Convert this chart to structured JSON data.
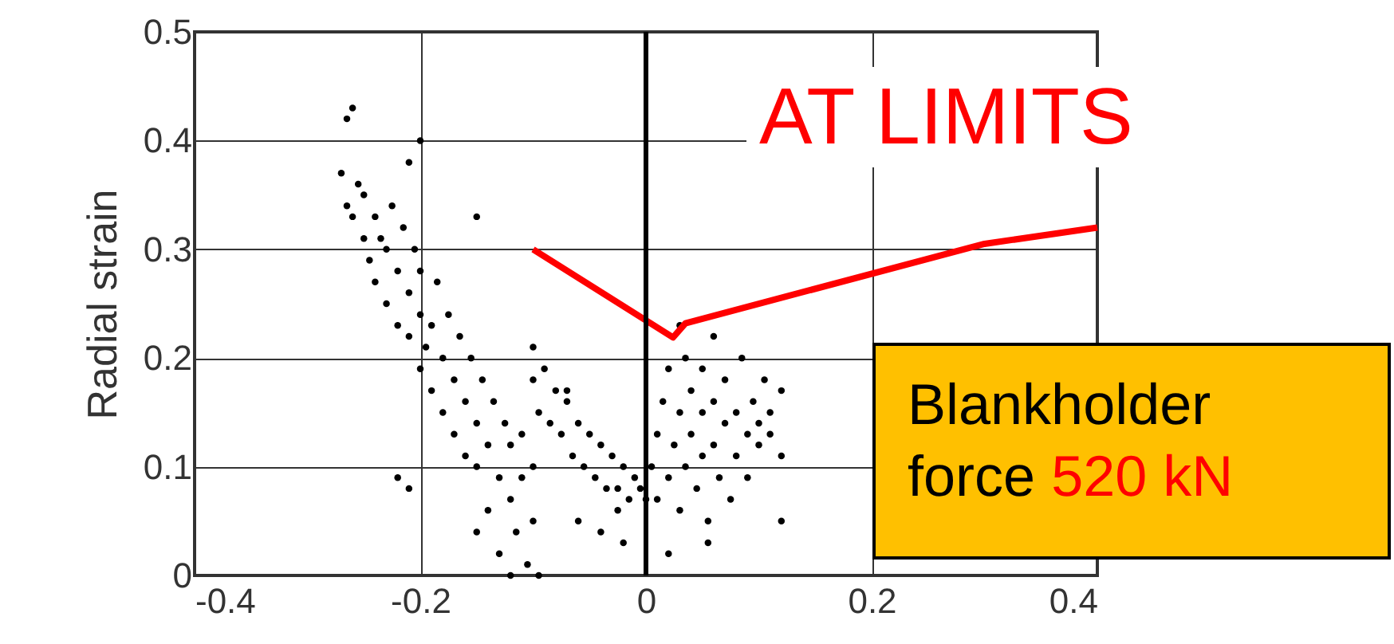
{
  "chart_data": {
    "type": "scatter",
    "ylabel": "Radial strain",
    "xlim": [
      -0.4,
      0.4
    ],
    "xticks": [
      -0.4,
      -0.2,
      0,
      0.2,
      0.4
    ],
    "ylim": [
      0,
      0.5
    ],
    "yticks": [
      0,
      0.1,
      0.2,
      0.3,
      0.4,
      0.5
    ],
    "grid": true,
    "ref_lines": [
      {
        "axis": "x",
        "value": 0,
        "color": "#000000"
      }
    ],
    "annotations": [
      "AT LIMITS",
      "Blankholder",
      "force",
      "520 kN"
    ],
    "series": [
      {
        "marker": "circle",
        "color": "#000000",
        "x": [
          -0.27,
          -0.265,
          -0.26,
          -0.265,
          -0.26,
          -0.255,
          -0.25,
          -0.25,
          -0.245,
          -0.24,
          -0.24,
          -0.235,
          -0.23,
          -0.23,
          -0.225,
          -0.22,
          -0.22,
          -0.215,
          -0.21,
          -0.21,
          -0.205,
          -0.2,
          -0.2,
          -0.2,
          -0.195,
          -0.19,
          -0.19,
          -0.185,
          -0.18,
          -0.18,
          -0.175,
          -0.17,
          -0.17,
          -0.165,
          -0.16,
          -0.16,
          -0.155,
          -0.15,
          -0.15,
          -0.145,
          -0.14,
          -0.14,
          -0.135,
          -0.13,
          -0.13,
          -0.125,
          -0.12,
          -0.12,
          -0.12,
          -0.115,
          -0.11,
          -0.11,
          -0.105,
          -0.1,
          -0.1,
          -0.095,
          -0.2,
          -0.21,
          -0.15,
          -0.22,
          -0.21,
          -0.15,
          -0.1,
          -0.1,
          -0.095,
          -0.09,
          -0.085,
          -0.08,
          -0.075,
          -0.07,
          -0.065,
          -0.06,
          -0.055,
          -0.05,
          -0.045,
          -0.04,
          -0.035,
          -0.03,
          -0.025,
          -0.02,
          -0.015,
          -0.01,
          -0.005,
          0,
          -0.06,
          -0.04,
          -0.025,
          -0.07,
          -0.02,
          0.005,
          0.01,
          0.01,
          0.015,
          0.02,
          0.02,
          0.025,
          0.03,
          0.03,
          0.035,
          0.035,
          0.04,
          0.04,
          0.045,
          0.05,
          0.05,
          0.05,
          0.055,
          0.06,
          0.06,
          0.065,
          0.07,
          0.07,
          0.075,
          0.08,
          0.08,
          0.085,
          0.09,
          0.09,
          0.095,
          0.1,
          0.1,
          0.105,
          0.11,
          0.12,
          0.12,
          0.12,
          0.055,
          0.02,
          0.03,
          0.06,
          0.11
        ],
        "values": [
          0.37,
          0.42,
          0.43,
          0.34,
          0.33,
          0.36,
          0.31,
          0.35,
          0.29,
          0.33,
          0.27,
          0.31,
          0.25,
          0.3,
          0.34,
          0.23,
          0.28,
          0.32,
          0.22,
          0.26,
          0.3,
          0.19,
          0.24,
          0.28,
          0.21,
          0.17,
          0.23,
          0.27,
          0.15,
          0.2,
          0.24,
          0.13,
          0.18,
          0.22,
          0.11,
          0.16,
          0.2,
          0.1,
          0.14,
          0.18,
          0.06,
          0.12,
          0.16,
          0.02,
          0.09,
          0.14,
          0.0,
          0.07,
          0.12,
          0.04,
          0.09,
          0.13,
          0.01,
          0.05,
          0.1,
          0.0,
          0.4,
          0.38,
          0.33,
          0.09,
          0.08,
          0.04,
          0.21,
          0.18,
          0.15,
          0.19,
          0.14,
          0.17,
          0.13,
          0.16,
          0.11,
          0.14,
          0.1,
          0.13,
          0.09,
          0.12,
          0.08,
          0.11,
          0.08,
          0.1,
          0.07,
          0.09,
          0.08,
          0.07,
          0.05,
          0.04,
          0.06,
          0.17,
          0.03,
          0.1,
          0.13,
          0.07,
          0.16,
          0.09,
          0.19,
          0.12,
          0.15,
          0.06,
          0.2,
          0.1,
          0.13,
          0.17,
          0.08,
          0.11,
          0.15,
          0.19,
          0.05,
          0.12,
          0.16,
          0.09,
          0.14,
          0.18,
          0.07,
          0.11,
          0.15,
          0.2,
          0.13,
          0.09,
          0.16,
          0.12,
          0.14,
          0.18,
          0.13,
          0.17,
          0.11,
          0.05,
          0.03,
          0.02,
          0.23,
          0.22,
          0.15
        ]
      },
      {
        "type": "line",
        "color": "#ff0000",
        "x": [
          -0.1,
          0.024,
          0.035,
          0.3,
          0.4
        ],
        "values": [
          0.3,
          0.219,
          0.232,
          0.305,
          0.32
        ]
      }
    ]
  }
}
